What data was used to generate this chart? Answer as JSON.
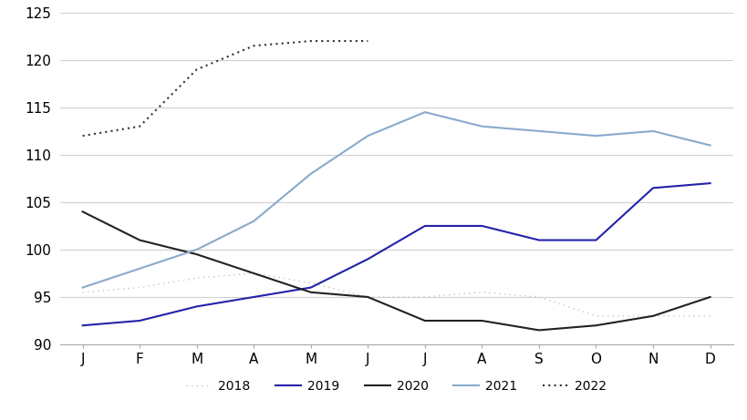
{
  "months": [
    "J",
    "F",
    "M",
    "A",
    "M",
    "J",
    "J",
    "A",
    "S",
    "O",
    "N",
    "D"
  ],
  "series": {
    "2018": [
      95.5,
      96.0,
      97.0,
      97.5,
      96.5,
      95.0,
      95.0,
      95.5,
      95.0,
      93.0,
      93.0,
      93.0
    ],
    "2019": [
      92.0,
      92.5,
      94.0,
      95.0,
      96.0,
      99.0,
      102.5,
      102.5,
      101.0,
      101.0,
      106.5,
      107.0
    ],
    "2020": [
      104.0,
      101.0,
      99.5,
      97.5,
      95.5,
      95.0,
      92.5,
      92.5,
      91.5,
      92.0,
      93.0,
      95.0
    ],
    "2021": [
      96.0,
      98.0,
      100.0,
      103.0,
      108.0,
      112.0,
      114.5,
      113.0,
      112.5,
      112.0,
      112.5,
      111.0
    ],
    "2022": [
      112.0,
      113.0,
      119.0,
      121.5,
      122.0,
      122.0,
      null,
      null,
      null,
      null,
      null,
      null
    ]
  },
  "colors": {
    "2018": "#c8c8b0",
    "2019": "#2222aa",
    "2020": "#222222",
    "2021": "#88aacc",
    "2022": "#333333"
  },
  "linestyles": {
    "2019": "solid",
    "2020": "solid",
    "2021": "solid"
  },
  "linewidths": {
    "2018": 1.0,
    "2019": 1.5,
    "2020": 1.5,
    "2021": 1.5,
    "2022": 1.5
  },
  "ylim": [
    90,
    125
  ],
  "yticks": [
    90,
    95,
    100,
    105,
    110,
    115,
    120,
    125
  ],
  "background_color": "#ffffff",
  "grid_color": "#d0d0d0",
  "legend_order": [
    "2018",
    "2019",
    "2020",
    "2021",
    "2022"
  ]
}
